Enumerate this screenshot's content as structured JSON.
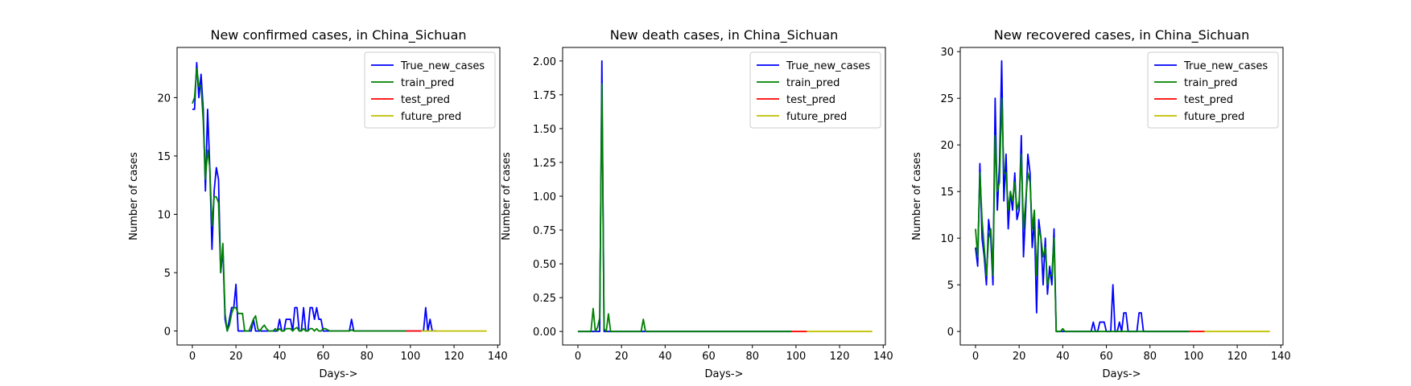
{
  "chart_data": [
    {
      "type": "line",
      "title": "New confirmed cases, in China_Sichuan",
      "xlabel": "Days->",
      "ylabel": "Number of cases",
      "xlim": [
        -7,
        141
      ],
      "ylim": [
        -1.2,
        24.3
      ],
      "xticks": [
        0,
        20,
        40,
        60,
        80,
        100,
        120,
        140
      ],
      "yticks": [
        0,
        5,
        10,
        15,
        20
      ],
      "legend": "top-right",
      "series": [
        {
          "name": "True_new_cases",
          "color": "#0000ff",
          "x": [
            0,
            1,
            2,
            3,
            4,
            5,
            6,
            7,
            8,
            9,
            10,
            11,
            12,
            13,
            14,
            15,
            16,
            17,
            18,
            19,
            20,
            21,
            22,
            23,
            24,
            25,
            26,
            27,
            28,
            29,
            30,
            31,
            32,
            33,
            34,
            35,
            36,
            37,
            38,
            39,
            40,
            41,
            42,
            43,
            44,
            45,
            46,
            47,
            48,
            49,
            50,
            51,
            52,
            53,
            54,
            55,
            56,
            57,
            58,
            59,
            60,
            61,
            62,
            63,
            64,
            65,
            66,
            67,
            68,
            69,
            70,
            71,
            72,
            73,
            74,
            75,
            76,
            77,
            78,
            79,
            80,
            81,
            82,
            83,
            84,
            85,
            86,
            87,
            88,
            89,
            90,
            91,
            92,
            93,
            94,
            95,
            96,
            97,
            98,
            99,
            100,
            101,
            102,
            103,
            104,
            105,
            106,
            107,
            108,
            109,
            110,
            111,
            112
          ],
          "y": [
            19,
            19,
            23,
            20,
            22,
            19,
            12,
            19,
            14,
            7,
            12,
            14,
            13,
            5,
            7,
            1,
            0,
            1,
            2,
            2,
            4,
            0,
            0,
            0,
            0,
            0,
            0,
            0,
            1,
            0,
            0,
            0,
            0,
            0,
            0,
            0,
            0,
            0,
            0,
            0,
            1,
            0,
            0,
            1,
            1,
            1,
            0,
            2,
            2,
            0,
            0,
            2,
            0,
            0,
            2,
            2,
            1,
            2,
            1,
            1,
            0,
            0,
            0,
            0,
            0,
            0,
            0,
            0,
            0,
            0,
            0,
            0,
            0,
            1,
            0,
            0,
            0,
            0,
            0,
            0,
            0,
            0,
            0,
            0,
            0,
            0,
            0,
            0,
            0,
            0,
            0,
            0,
            0,
            0,
            0,
            0,
            0,
            0,
            0,
            0,
            0,
            0,
            0,
            0,
            0,
            0,
            0,
            2,
            0,
            1,
            0,
            0,
            0
          ]
        },
        {
          "name": "train_pred",
          "color": "#008000",
          "x": [
            0,
            1,
            2,
            3,
            4,
            5,
            6,
            7,
            8,
            9,
            10,
            11,
            12,
            13,
            14,
            15,
            16,
            17,
            18,
            19,
            20,
            21,
            22,
            23,
            24,
            25,
            26,
            27,
            28,
            29,
            30,
            31,
            32,
            33,
            34,
            35,
            36,
            37,
            38,
            39,
            40,
            41,
            42,
            43,
            44,
            45,
            46,
            47,
            48,
            49,
            50,
            51,
            52,
            53,
            54,
            55,
            56,
            57,
            58,
            59,
            60,
            61,
            62,
            63,
            64,
            65,
            66,
            67,
            68,
            69,
            70,
            71,
            72,
            73,
            74,
            75,
            76,
            77,
            78,
            79,
            80,
            81,
            82,
            83,
            84,
            85,
            86,
            87,
            88,
            89,
            90,
            91,
            92,
            93,
            94,
            95,
            96,
            97,
            98
          ],
          "y": [
            19.5,
            20,
            22.5,
            21,
            21,
            18,
            13,
            15.5,
            14,
            9,
            11.5,
            11.5,
            11,
            5,
            7.5,
            1.5,
            0,
            0.5,
            1.5,
            2,
            2,
            1.5,
            1.5,
            1.5,
            0,
            0,
            0,
            0.5,
            1,
            1.3,
            0.2,
            0,
            0.3,
            0.5,
            0.2,
            0,
            0,
            0,
            0.2,
            0,
            0.2,
            0,
            0,
            0.2,
            0.2,
            0.2,
            0,
            0.2,
            0.3,
            0,
            0,
            0.2,
            0,
            0,
            0.2,
            0.2,
            0,
            0.2,
            0,
            0,
            0.2,
            0.2,
            0.1,
            0,
            0,
            0,
            0,
            0,
            0,
            0,
            0,
            0,
            0,
            0.1,
            0,
            0,
            0,
            0,
            0,
            0,
            0,
            0,
            0,
            0,
            0,
            0,
            0,
            0,
            0,
            0,
            0,
            0,
            0,
            0,
            0,
            0,
            0,
            0,
            0
          ]
        },
        {
          "name": "test_pred",
          "color": "#ff0000",
          "x": [
            98,
            99,
            100,
            101,
            102,
            103,
            104,
            105
          ],
          "y": [
            0,
            0,
            0,
            0,
            0,
            0,
            0,
            0
          ]
        },
        {
          "name": "future_pred",
          "color": "#bfbf00",
          "x": [
            105,
            110,
            115,
            120,
            125,
            130,
            135
          ],
          "y": [
            0,
            0,
            0,
            0,
            0,
            0,
            0
          ]
        }
      ]
    },
    {
      "type": "line",
      "title": "New death cases, in China_Sichuan",
      "xlabel": "Days->",
      "ylabel": "Number of cases",
      "xlim": [
        -7,
        141
      ],
      "ylim": [
        -0.1,
        2.1
      ],
      "yformat": 2,
      "xticks": [
        0,
        20,
        40,
        60,
        80,
        100,
        120,
        140
      ],
      "yticks": [
        0.0,
        0.25,
        0.5,
        0.75,
        1.0,
        1.25,
        1.5,
        1.75,
        2.0
      ],
      "legend": "top-right",
      "series": [
        {
          "name": "True_new_cases",
          "color": "#0000ff",
          "x": [
            0,
            9,
            10,
            11,
            12,
            98
          ],
          "y": [
            0,
            0,
            0,
            2,
            0,
            0
          ]
        },
        {
          "name": "train_pred",
          "color": "#008000",
          "x": [
            0,
            6,
            7,
            8,
            9,
            10,
            11,
            12,
            13,
            14,
            15,
            16,
            28,
            29,
            30,
            31,
            98
          ],
          "y": [
            0,
            0,
            0.17,
            0,
            0.03,
            0.1,
            1.83,
            0.02,
            0,
            0.13,
            0,
            0,
            0,
            0,
            0.09,
            0,
            0
          ]
        },
        {
          "name": "test_pred",
          "color": "#ff0000",
          "x": [
            98,
            105
          ],
          "y": [
            0,
            0
          ]
        },
        {
          "name": "future_pred",
          "color": "#bfbf00",
          "x": [
            105,
            135
          ],
          "y": [
            0,
            0
          ]
        }
      ]
    },
    {
      "type": "line",
      "title": "New recovered cases, in China_Sichuan",
      "xlabel": "Days->",
      "ylabel": "Number of cases",
      "xlim": [
        -7,
        141
      ],
      "ylim": [
        -1.45,
        30.45
      ],
      "xticks": [
        0,
        20,
        40,
        60,
        80,
        100,
        120,
        140
      ],
      "yticks": [
        0,
        5,
        10,
        15,
        20,
        25,
        30
      ],
      "legend": "top-right",
      "series": [
        {
          "name": "True_new_cases",
          "color": "#0000ff",
          "x": [
            0,
            1,
            2,
            3,
            4,
            5,
            6,
            7,
            8,
            9,
            10,
            11,
            12,
            13,
            14,
            15,
            16,
            17,
            18,
            19,
            20,
            21,
            22,
            23,
            24,
            25,
            26,
            27,
            28,
            29,
            30,
            31,
            32,
            33,
            34,
            35,
            36,
            37,
            38,
            39,
            40,
            41,
            42,
            43,
            44,
            45,
            46,
            47,
            48,
            49,
            50,
            51,
            52,
            53,
            54,
            55,
            56,
            57,
            58,
            59,
            60,
            61,
            62,
            63,
            64,
            65,
            66,
            67,
            68,
            69,
            70,
            71,
            72,
            73,
            74,
            75,
            76,
            77,
            78,
            79,
            80,
            81,
            82,
            83,
            84,
            85,
            86,
            87,
            88,
            89,
            90,
            91,
            92,
            93,
            94,
            95,
            96,
            97,
            98
          ],
          "y": [
            9,
            7,
            18,
            10,
            8,
            5,
            12,
            10,
            5,
            25,
            13,
            18,
            29,
            14,
            19,
            11,
            15,
            13,
            17,
            12,
            13,
            21,
            8,
            13,
            19,
            17,
            9,
            12,
            2,
            12,
            10,
            5,
            10,
            4,
            7,
            5,
            11,
            0,
            0,
            0,
            0,
            0,
            0,
            0,
            0,
            0,
            0,
            0,
            0,
            0,
            0,
            0,
            0,
            0,
            1,
            0,
            0,
            1,
            1,
            1,
            0,
            0,
            0,
            5,
            0,
            0,
            1,
            0,
            2,
            2,
            0,
            0,
            0,
            0,
            0,
            2,
            2,
            0,
            0,
            0,
            0,
            0,
            0,
            0,
            0,
            0,
            0,
            0,
            0,
            0,
            0,
            0,
            0,
            0,
            0,
            0,
            0,
            0,
            0
          ]
        },
        {
          "name": "train_pred",
          "color": "#008000",
          "x": [
            0,
            1,
            2,
            3,
            4,
            5,
            6,
            7,
            8,
            9,
            10,
            11,
            12,
            13,
            14,
            15,
            16,
            17,
            18,
            19,
            20,
            21,
            22,
            23,
            24,
            25,
            26,
            27,
            28,
            29,
            30,
            31,
            32,
            33,
            34,
            35,
            36,
            37,
            38,
            39,
            40,
            41,
            42,
            43,
            44,
            45,
            46,
            47,
            48,
            49,
            50,
            51,
            52,
            53,
            54,
            55,
            56,
            57,
            58,
            59,
            60,
            61,
            62,
            63,
            64,
            65,
            66,
            67,
            68,
            69,
            70,
            71,
            72,
            73,
            74,
            75,
            76,
            77,
            78,
            79,
            80,
            81,
            82,
            83,
            84,
            85,
            86,
            87,
            88,
            89,
            90,
            91,
            92,
            93,
            94,
            95,
            96,
            97,
            98
          ],
          "y": [
            11,
            8,
            17,
            12,
            9,
            6,
            10,
            11,
            6,
            21,
            15,
            16,
            25,
            17,
            17,
            13,
            15,
            14,
            16,
            13,
            14,
            19,
            11,
            14,
            17,
            16,
            11,
            13,
            6,
            11,
            10,
            8,
            9,
            5,
            6,
            6,
            10,
            0,
            0,
            0,
            0.3,
            0,
            0,
            0,
            0,
            0,
            0,
            0,
            0,
            0,
            0,
            0,
            0,
            0,
            0,
            0,
            0,
            0,
            0,
            0,
            0,
            0,
            0,
            0,
            0,
            0,
            0,
            0,
            0,
            0,
            0,
            0,
            0,
            0,
            0,
            0,
            0,
            0,
            0,
            0,
            0,
            0,
            0,
            0,
            0,
            0,
            0,
            0,
            0,
            0,
            0,
            0,
            0,
            0,
            0,
            0,
            0,
            0,
            0
          ]
        },
        {
          "name": "test_pred",
          "color": "#ff0000",
          "x": [
            98,
            105
          ],
          "y": [
            0,
            0
          ]
        },
        {
          "name": "future_pred",
          "color": "#bfbf00",
          "x": [
            105,
            135
          ],
          "y": [
            0,
            0
          ]
        }
      ]
    }
  ]
}
